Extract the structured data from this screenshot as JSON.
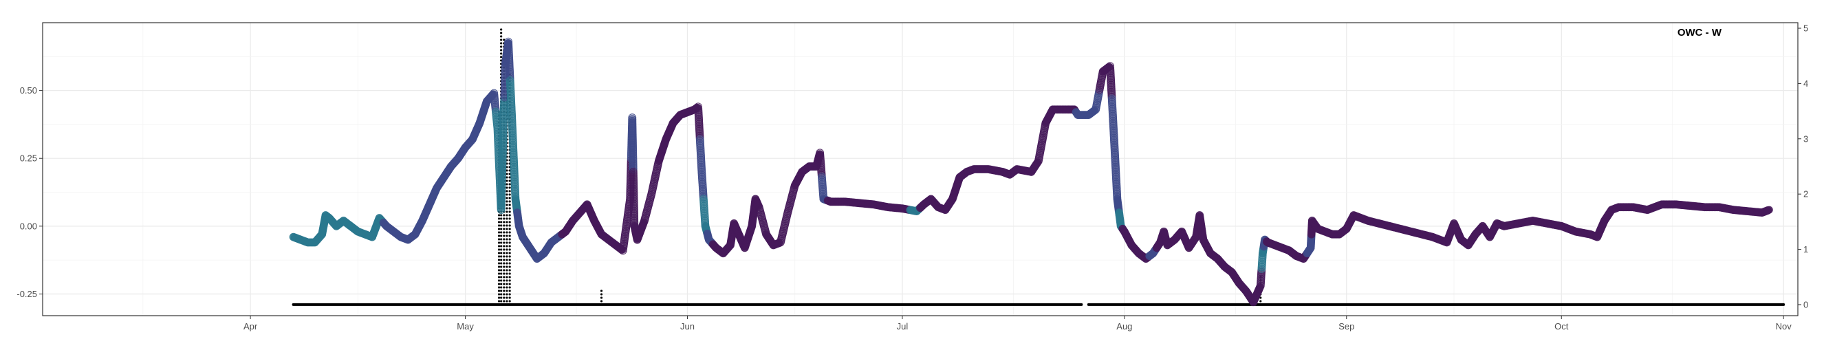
{
  "chart_data": {
    "type": "scatter",
    "title": "OWC - W",
    "xlabel": "",
    "ylabel": "",
    "y2label": "",
    "x_ticks": [
      "Apr",
      "May",
      "Jun",
      "Jul",
      "Aug",
      "Sep",
      "Oct",
      "Nov"
    ],
    "x_tick_days": [
      91,
      121,
      152,
      182,
      213,
      244,
      274,
      305
    ],
    "xlim_days": [
      62,
      307
    ],
    "ylim": [
      -0.33,
      0.75
    ],
    "y_ticks": [
      -0.25,
      0.0,
      0.25,
      0.5
    ],
    "y_tick_labels": [
      "-0.25",
      "0.00",
      "0.25",
      "0.50"
    ],
    "y2lim": [
      -0.2,
      5.1
    ],
    "y2_ticks": [
      0,
      1,
      2,
      3,
      4,
      5
    ],
    "y2_tick_labels": [
      "0",
      "1",
      "2",
      "3",
      "4",
      "5"
    ],
    "grid": true,
    "colors": {
      "dark": "#461a5a",
      "mid": "#3e4a89",
      "teal": "#2a788e",
      "precip": "#000000"
    },
    "series": [
      {
        "role": "water-level",
        "points": [
          [
            97,
            -0.04,
            "t"
          ],
          [
            98,
            -0.05,
            "t"
          ],
          [
            99,
            -0.06,
            "t"
          ],
          [
            100,
            -0.06,
            "t"
          ],
          [
            101,
            -0.03,
            "t"
          ],
          [
            101.5,
            0.04,
            "t"
          ],
          [
            102,
            0.03,
            "t"
          ],
          [
            103,
            0.0,
            "t"
          ],
          [
            104,
            0.02,
            "t"
          ],
          [
            105,
            0.0,
            "t"
          ],
          [
            106,
            -0.02,
            "t"
          ],
          [
            107,
            -0.03,
            "t"
          ],
          [
            108,
            -0.04,
            "t"
          ],
          [
            109,
            0.03,
            "t"
          ],
          [
            110,
            0.0,
            "m"
          ],
          [
            111,
            -0.02,
            "m"
          ],
          [
            112,
            -0.04,
            "m"
          ],
          [
            113,
            -0.05,
            "m"
          ],
          [
            114,
            -0.03,
            "m"
          ],
          [
            115,
            0.02,
            "m"
          ],
          [
            116,
            0.08,
            "m"
          ],
          [
            117,
            0.14,
            "m"
          ],
          [
            118,
            0.18,
            "m"
          ],
          [
            119,
            0.22,
            "m"
          ],
          [
            120,
            0.25,
            "m"
          ],
          [
            121,
            0.29,
            "m"
          ],
          [
            122,
            0.32,
            "m"
          ],
          [
            123,
            0.38,
            "m"
          ],
          [
            124,
            0.46,
            "m"
          ],
          [
            125,
            0.49,
            "m"
          ],
          [
            125.5,
            0.36,
            "t"
          ],
          [
            126,
            0.06,
            "t"
          ],
          [
            126.3,
            0.35,
            "t"
          ],
          [
            126.6,
            0.6,
            "m"
          ],
          [
            127,
            0.68,
            "m"
          ],
          [
            127.5,
            0.4,
            "t"
          ],
          [
            128,
            0.1,
            "t"
          ],
          [
            128.5,
            0.0,
            "m"
          ],
          [
            129,
            -0.04,
            "m"
          ],
          [
            130,
            -0.08,
            "m"
          ],
          [
            131,
            -0.12,
            "m"
          ],
          [
            132,
            -0.1,
            "m"
          ],
          [
            133,
            -0.06,
            "m"
          ],
          [
            134,
            -0.04,
            "m"
          ],
          [
            135,
            -0.02,
            "d"
          ],
          [
            136,
            0.02,
            "d"
          ],
          [
            137,
            0.05,
            "d"
          ],
          [
            138,
            0.08,
            "d"
          ],
          [
            139,
            0.02,
            "d"
          ],
          [
            140,
            -0.03,
            "d"
          ],
          [
            141,
            -0.05,
            "d"
          ],
          [
            142,
            -0.07,
            "d"
          ],
          [
            143,
            -0.09,
            "d"
          ],
          [
            144,
            0.1,
            "d"
          ],
          [
            144.3,
            0.4,
            "m"
          ],
          [
            144.6,
            0.0,
            "d"
          ],
          [
            145,
            -0.05,
            "d"
          ],
          [
            146,
            0.02,
            "d"
          ],
          [
            147,
            0.12,
            "d"
          ],
          [
            148,
            0.24,
            "d"
          ],
          [
            149,
            0.32,
            "d"
          ],
          [
            150,
            0.38,
            "d"
          ],
          [
            151,
            0.41,
            "d"
          ],
          [
            152,
            0.42,
            "d"
          ],
          [
            153,
            0.43,
            "d"
          ],
          [
            153.5,
            0.44,
            "d"
          ],
          [
            154,
            0.2,
            "m"
          ],
          [
            154.5,
            0.0,
            "t"
          ],
          [
            155,
            -0.05,
            "m"
          ],
          [
            156,
            -0.08,
            "d"
          ],
          [
            157,
            -0.1,
            "d"
          ],
          [
            158,
            -0.07,
            "d"
          ],
          [
            158.5,
            0.01,
            "d"
          ],
          [
            159,
            -0.02,
            "d"
          ],
          [
            160,
            -0.08,
            "d"
          ],
          [
            161,
            0.0,
            "d"
          ],
          [
            161.5,
            0.1,
            "d"
          ],
          [
            162,
            0.07,
            "d"
          ],
          [
            163,
            -0.03,
            "d"
          ],
          [
            164,
            -0.07,
            "d"
          ],
          [
            165,
            -0.06,
            "d"
          ],
          [
            166,
            0.05,
            "d"
          ],
          [
            167,
            0.15,
            "d"
          ],
          [
            168,
            0.2,
            "d"
          ],
          [
            169,
            0.22,
            "d"
          ],
          [
            170,
            0.22,
            "d"
          ],
          [
            170.5,
            0.27,
            "d"
          ],
          [
            171,
            0.1,
            "m"
          ],
          [
            172,
            0.09,
            "d"
          ],
          [
            174,
            0.09,
            "d"
          ],
          [
            176,
            0.085,
            "d"
          ],
          [
            178,
            0.08,
            "d"
          ],
          [
            180,
            0.07,
            "d"
          ],
          [
            182,
            0.065,
            "d"
          ],
          [
            184,
            0.055,
            "t"
          ],
          [
            185,
            0.08,
            "d"
          ],
          [
            186,
            0.1,
            "d"
          ],
          [
            187,
            0.07,
            "d"
          ],
          [
            188,
            0.06,
            "d"
          ],
          [
            189,
            0.1,
            "d"
          ],
          [
            190,
            0.18,
            "d"
          ],
          [
            191,
            0.2,
            "d"
          ],
          [
            192,
            0.21,
            "d"
          ],
          [
            194,
            0.21,
            "d"
          ],
          [
            196,
            0.2,
            "d"
          ],
          [
            197,
            0.19,
            "d"
          ],
          [
            198,
            0.21,
            "d"
          ],
          [
            200,
            0.2,
            "d"
          ],
          [
            201,
            0.24,
            "d"
          ],
          [
            202,
            0.38,
            "d"
          ],
          [
            203,
            0.43,
            "d"
          ],
          [
            205,
            0.43,
            "d"
          ],
          [
            206,
            0.43,
            "d"
          ],
          [
            206.5,
            0.41,
            "m"
          ],
          [
            208,
            0.41,
            "m"
          ],
          [
            209,
            0.43,
            "m"
          ],
          [
            210,
            0.57,
            "d"
          ],
          [
            211,
            0.59,
            "d"
          ],
          [
            211.5,
            0.35,
            "m"
          ],
          [
            212,
            0.1,
            "m"
          ],
          [
            212.5,
            0.0,
            "t"
          ],
          [
            213,
            -0.02,
            "d"
          ],
          [
            214,
            -0.07,
            "d"
          ],
          [
            215,
            -0.1,
            "d"
          ],
          [
            216,
            -0.12,
            "d"
          ],
          [
            217,
            -0.1,
            "m"
          ],
          [
            218,
            -0.06,
            "d"
          ],
          [
            218.5,
            -0.02,
            "d"
          ],
          [
            219,
            -0.07,
            "d"
          ],
          [
            220,
            -0.05,
            "d"
          ],
          [
            221,
            -0.02,
            "d"
          ],
          [
            222,
            -0.08,
            "d"
          ],
          [
            223,
            -0.04,
            "d"
          ],
          [
            223.5,
            0.04,
            "d"
          ],
          [
            224,
            -0.05,
            "d"
          ],
          [
            225,
            -0.1,
            "d"
          ],
          [
            226,
            -0.12,
            "d"
          ],
          [
            227,
            -0.15,
            "d"
          ],
          [
            228,
            -0.17,
            "d"
          ],
          [
            229,
            -0.21,
            "d"
          ],
          [
            230,
            -0.24,
            "d"
          ],
          [
            231,
            -0.28,
            "d"
          ],
          [
            232,
            -0.22,
            "d"
          ],
          [
            232.3,
            -0.1,
            "t"
          ],
          [
            232.6,
            -0.05,
            "m"
          ],
          [
            233,
            -0.06,
            "d"
          ],
          [
            234,
            -0.07,
            "d"
          ],
          [
            235,
            -0.08,
            "d"
          ],
          [
            236,
            -0.09,
            "d"
          ],
          [
            237,
            -0.11,
            "d"
          ],
          [
            238,
            -0.12,
            "d"
          ],
          [
            239,
            -0.08,
            "m"
          ],
          [
            239.2,
            0.02,
            "d"
          ],
          [
            240,
            -0.01,
            "d"
          ],
          [
            241,
            -0.02,
            "d"
          ],
          [
            242,
            -0.03,
            "d"
          ],
          [
            243,
            -0.03,
            "d"
          ],
          [
            244,
            -0.01,
            "d"
          ],
          [
            245,
            0.04,
            "d"
          ],
          [
            247,
            0.02,
            "d"
          ],
          [
            250,
            0.0,
            "d"
          ],
          [
            253,
            -0.02,
            "d"
          ],
          [
            256,
            -0.04,
            "d"
          ],
          [
            258,
            -0.06,
            "d"
          ],
          [
            259,
            0.01,
            "d"
          ],
          [
            260,
            -0.05,
            "d"
          ],
          [
            261,
            -0.07,
            "d"
          ],
          [
            262,
            -0.03,
            "d"
          ],
          [
            263,
            0.0,
            "d"
          ],
          [
            264,
            -0.04,
            "d"
          ],
          [
            265,
            0.01,
            "d"
          ],
          [
            266,
            0.0,
            "d"
          ],
          [
            268,
            0.01,
            "d"
          ],
          [
            270,
            0.02,
            "d"
          ],
          [
            272,
            0.01,
            "d"
          ],
          [
            274,
            0.0,
            "d"
          ],
          [
            276,
            -0.02,
            "d"
          ],
          [
            278,
            -0.03,
            "d"
          ],
          [
            279,
            -0.04,
            "d"
          ],
          [
            280,
            0.02,
            "d"
          ],
          [
            281,
            0.06,
            "d"
          ],
          [
            282,
            0.07,
            "d"
          ],
          [
            284,
            0.07,
            "d"
          ],
          [
            286,
            0.06,
            "d"
          ],
          [
            288,
            0.08,
            "d"
          ],
          [
            290,
            0.08,
            "d"
          ],
          [
            292,
            0.075,
            "d"
          ],
          [
            294,
            0.07,
            "d"
          ],
          [
            296,
            0.07,
            "d"
          ],
          [
            298,
            0.06,
            "d"
          ],
          [
            300,
            0.055,
            "d"
          ],
          [
            302,
            0.05,
            "d"
          ],
          [
            303,
            0.06,
            "d"
          ]
        ]
      },
      {
        "role": "precipitation",
        "baseline_segments": [
          [
            97,
            207
          ],
          [
            208,
            305
          ]
        ],
        "spikes": [
          [
            126,
            5.0
          ],
          [
            126.4,
            4.8
          ],
          [
            126.8,
            4.6
          ],
          [
            127.2,
            4.2
          ],
          [
            125.7,
            3.5
          ],
          [
            140,
            0.3
          ],
          [
            232,
            0.5
          ]
        ]
      }
    ]
  }
}
